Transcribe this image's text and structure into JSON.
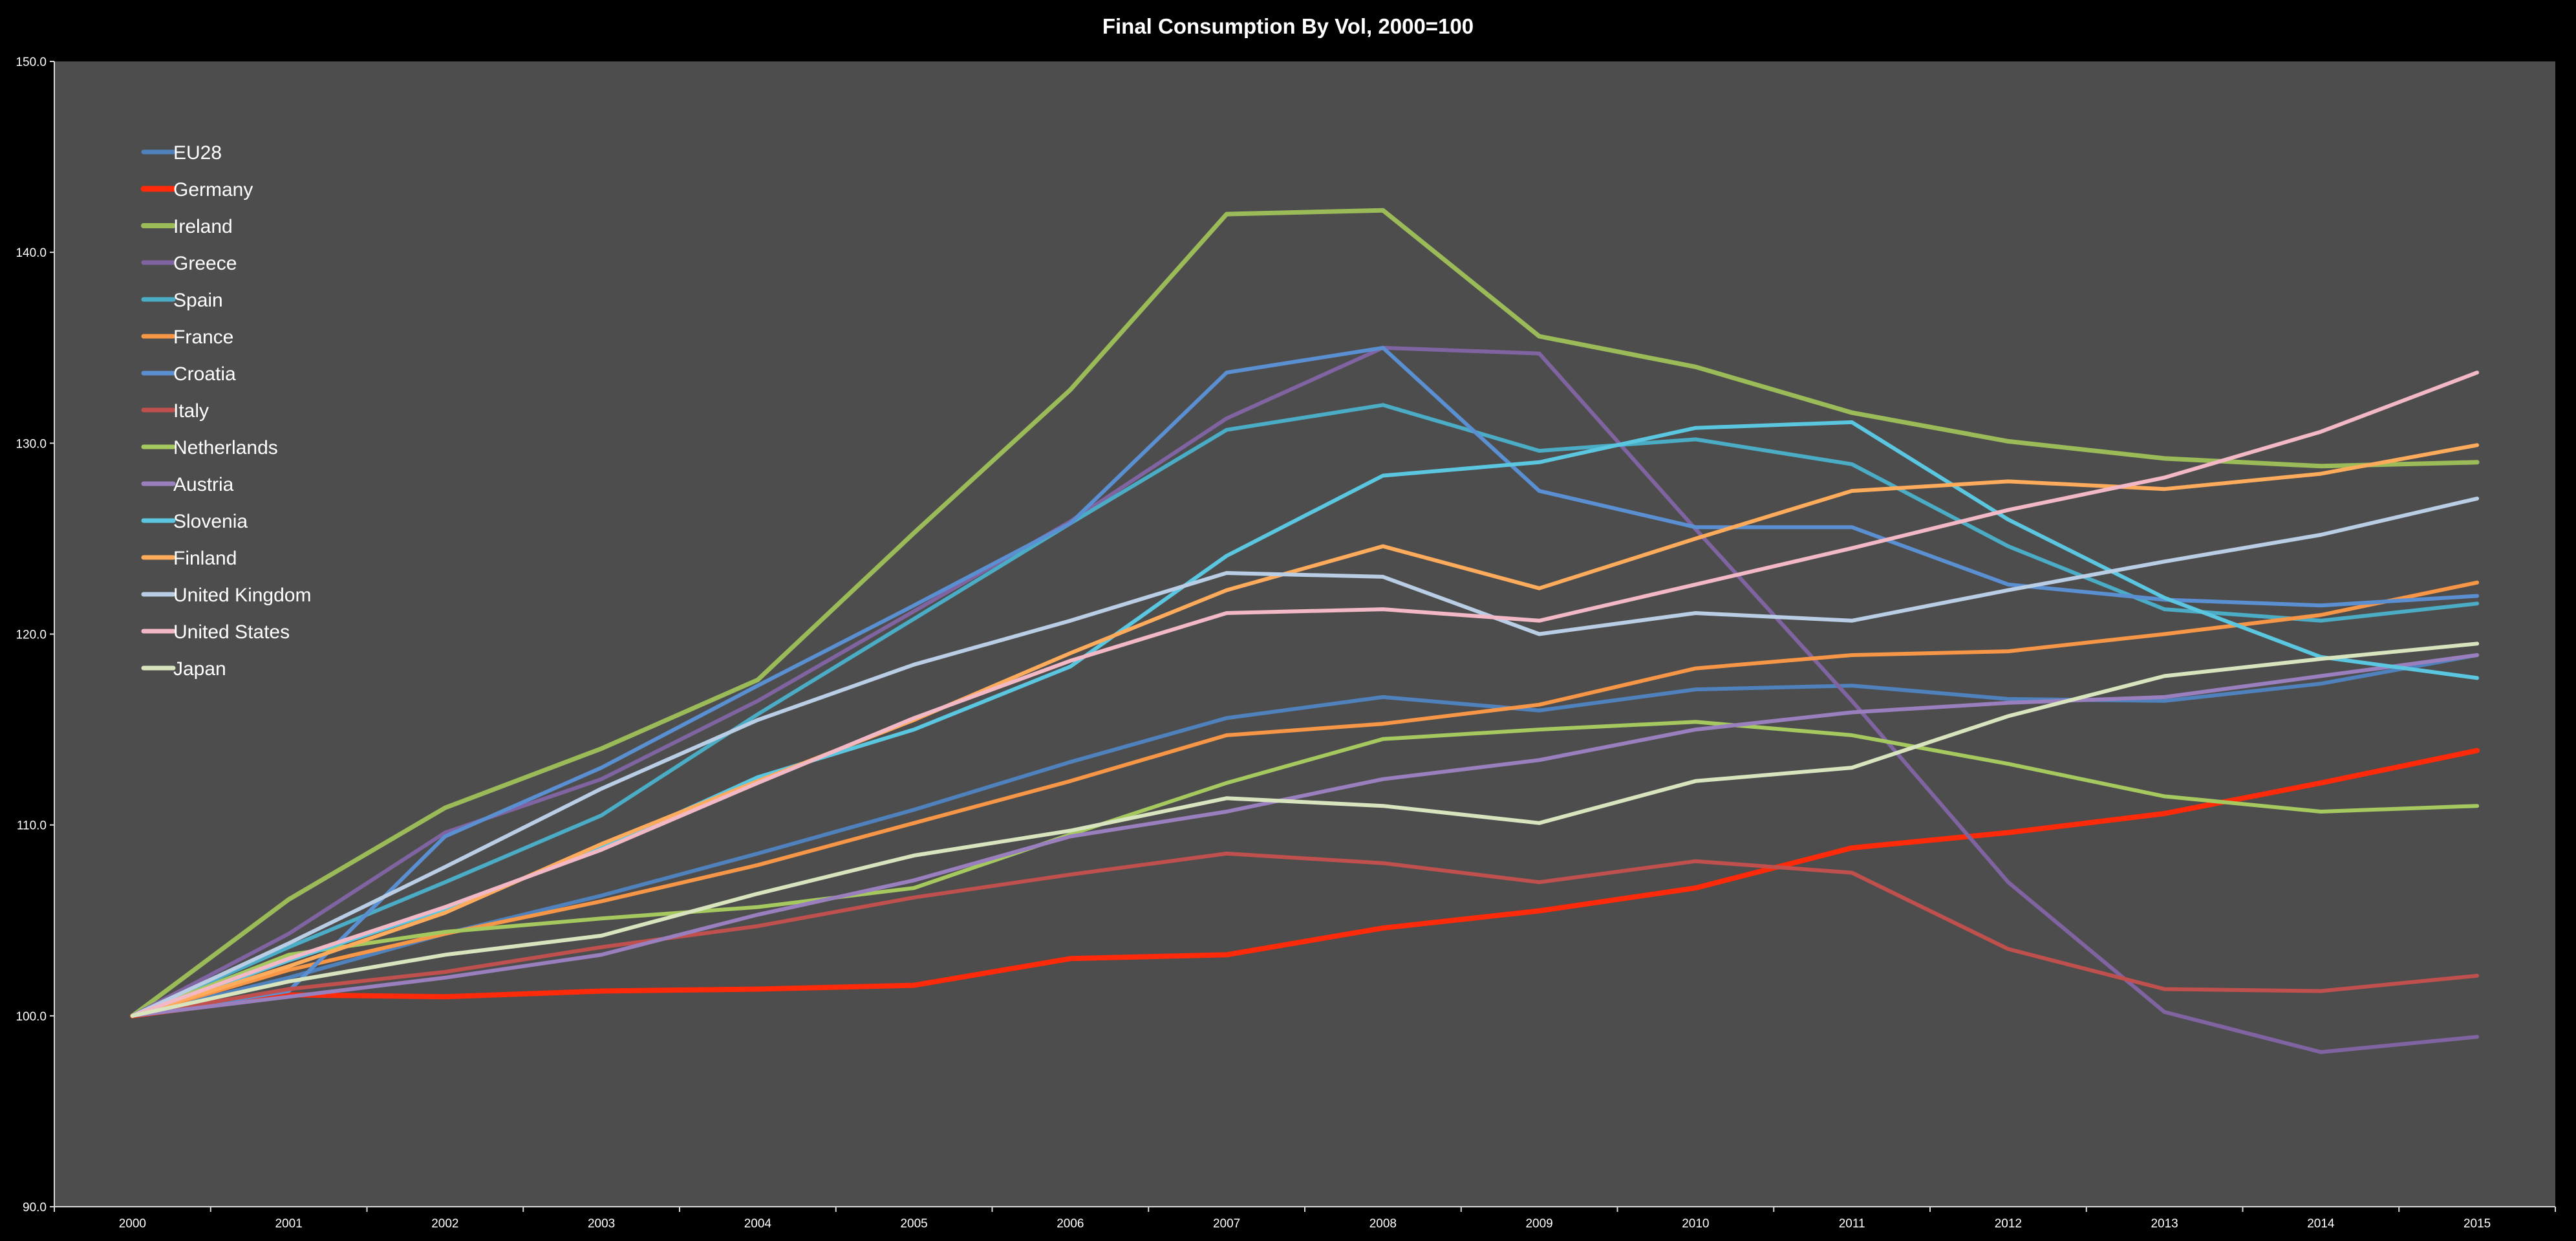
{
  "chart_data": {
    "type": "line",
    "title": "Final Consumption By Vol, 2000=100",
    "xlabel": "",
    "ylabel": "",
    "ylim": [
      90,
      150
    ],
    "yticks": [
      "90.0",
      "100.0",
      "110.0",
      "120.0",
      "130.0",
      "140.0",
      "150.0"
    ],
    "categories": [
      "2000",
      "2001",
      "2002",
      "2003",
      "2004",
      "2005",
      "2006",
      "2007",
      "2008",
      "2009",
      "2010",
      "2011",
      "2012",
      "2013",
      "2014",
      "2015"
    ],
    "legend_position": "top-left",
    "grid": false,
    "plot_background": "#4d4d4d",
    "page_background": "#000000",
    "series": [
      {
        "name": "EU28",
        "color": "#4f81bd",
        "width": 6,
        "values": [
          100,
          102.0,
          104.3,
          106.3,
          108.5,
          110.8,
          113.3,
          115.6,
          116.7,
          116.0,
          117.1,
          117.3,
          116.6,
          116.5,
          117.4,
          118.9
        ]
      },
      {
        "name": "Germany",
        "color": "#ff2a0a",
        "width": 8,
        "values": [
          100,
          101.1,
          101.0,
          101.3,
          101.4,
          101.6,
          103.0,
          103.2,
          104.6,
          105.5,
          106.7,
          108.8,
          109.6,
          110.6,
          112.2,
          113.9
        ]
      },
      {
        "name": "Ireland",
        "color": "#9bbb59",
        "width": 7,
        "values": [
          100,
          106.1,
          110.9,
          114.0,
          117.6,
          125.3,
          132.8,
          142.0,
          142.2,
          135.6,
          134.0,
          131.6,
          130.1,
          129.2,
          128.8,
          129.0
        ]
      },
      {
        "name": "Greece",
        "color": "#8064a2",
        "width": 6,
        "values": [
          100,
          104.3,
          109.6,
          112.4,
          116.5,
          121.2,
          125.9,
          131.3,
          135.0,
          134.7,
          125.5,
          116.5,
          107.0,
          100.2,
          98.1,
          98.9
        ]
      },
      {
        "name": "Spain",
        "color": "#4bacc6",
        "width": 6,
        "values": [
          100,
          103.6,
          107.0,
          110.5,
          115.8,
          120.8,
          125.8,
          130.7,
          132.0,
          129.6,
          130.2,
          128.9,
          124.6,
          121.3,
          120.7,
          121.6
        ]
      },
      {
        "name": "France",
        "color": "#f79646",
        "width": 6,
        "values": [
          100,
          102.4,
          104.3,
          106.0,
          107.9,
          110.1,
          112.3,
          114.7,
          115.3,
          116.3,
          118.2,
          118.9,
          119.1,
          120.0,
          121.0,
          122.7
        ]
      },
      {
        "name": "Croatia",
        "color": "#5a8fd1",
        "width": 6,
        "values": [
          100,
          101.3,
          109.4,
          113.0,
          117.3,
          121.5,
          125.8,
          133.7,
          135.0,
          127.5,
          125.6,
          125.6,
          122.6,
          121.8,
          121.5,
          122.0
        ]
      },
      {
        "name": "Italy",
        "color": "#c0504d",
        "width": 6,
        "values": [
          100,
          101.4,
          102.3,
          103.6,
          104.7,
          106.2,
          107.4,
          108.5,
          108.0,
          107.0,
          108.1,
          107.5,
          103.5,
          101.4,
          101.3,
          102.1
        ]
      },
      {
        "name": "Netherlands",
        "color": "#a5c85f",
        "width": 6,
        "values": [
          100,
          103.2,
          104.4,
          105.1,
          105.7,
          106.7,
          109.5,
          112.2,
          114.5,
          115.0,
          115.4,
          114.7,
          113.2,
          111.5,
          110.7,
          111.0
        ]
      },
      {
        "name": "Austria",
        "color": "#9a7fbf",
        "width": 6,
        "values": [
          100,
          101.0,
          102.0,
          103.2,
          105.3,
          107.1,
          109.4,
          110.7,
          112.4,
          113.4,
          115.0,
          115.9,
          116.4,
          116.7,
          117.8,
          118.9
        ]
      },
      {
        "name": "Slovenia",
        "color": "#5bc6e0",
        "width": 6,
        "values": [
          100,
          102.9,
          105.6,
          108.8,
          112.5,
          115.0,
          118.3,
          124.1,
          128.3,
          129.0,
          130.8,
          131.1,
          126.0,
          121.9,
          118.8,
          117.7
        ]
      },
      {
        "name": "Finland",
        "color": "#ffab5c",
        "width": 6,
        "values": [
          100,
          102.6,
          105.4,
          109.0,
          112.3,
          115.5,
          119.0,
          122.3,
          124.6,
          122.4,
          125.0,
          127.5,
          128.0,
          127.6,
          128.4,
          129.9
        ]
      },
      {
        "name": "United Kingdom",
        "color": "#b9cde5",
        "width": 6,
        "values": [
          100,
          103.8,
          107.8,
          111.9,
          115.5,
          118.4,
          120.7,
          123.2,
          123.0,
          120.0,
          121.1,
          120.7,
          122.3,
          123.8,
          125.2,
          127.1
        ]
      },
      {
        "name": "United States",
        "color": "#f2b8c6",
        "width": 6,
        "values": [
          100,
          103.0,
          105.7,
          108.7,
          112.2,
          115.6,
          118.6,
          121.1,
          121.3,
          120.7,
          122.6,
          124.5,
          126.5,
          128.2,
          130.6,
          133.7
        ]
      },
      {
        "name": "Japan",
        "color": "#d7e4bd",
        "width": 6,
        "values": [
          100,
          101.8,
          103.2,
          104.2,
          106.4,
          108.4,
          109.7,
          111.4,
          111.0,
          110.1,
          112.3,
          113.0,
          115.7,
          117.8,
          118.7,
          119.5
        ]
      }
    ]
  }
}
